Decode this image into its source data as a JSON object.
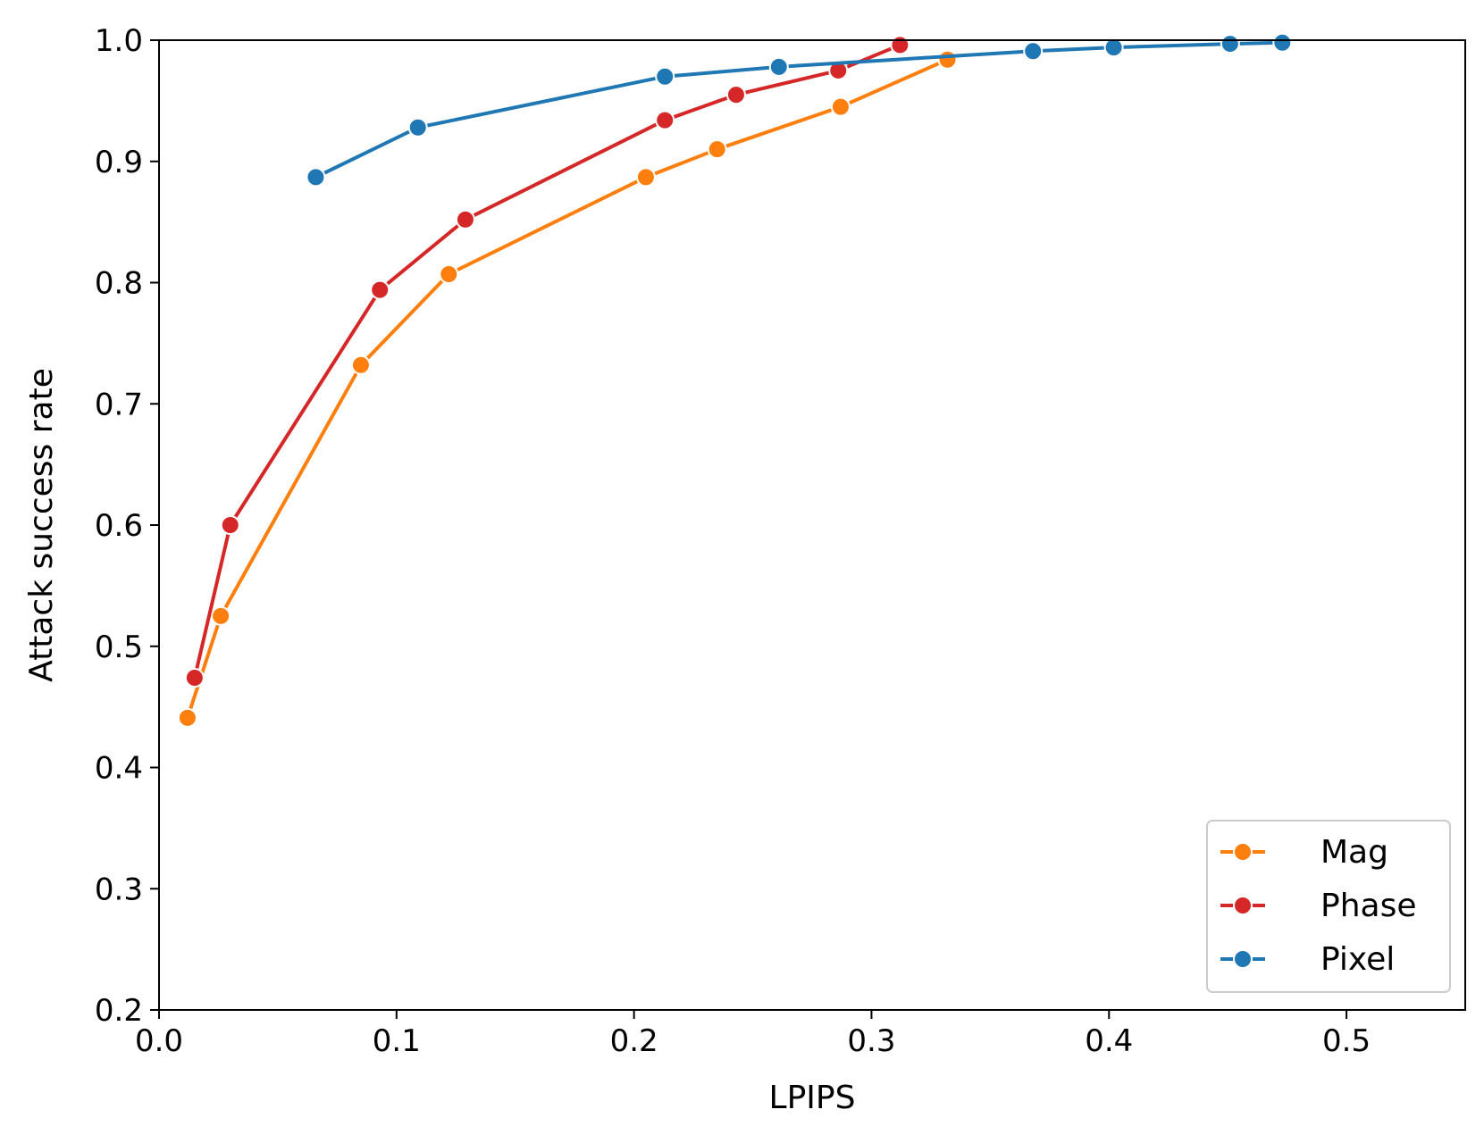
{
  "chart_data": {
    "type": "line",
    "title": "",
    "xlabel": "LPIPS",
    "ylabel": "Attack success rate",
    "xlim": [
      0.0,
      0.55
    ],
    "ylim": [
      0.2,
      1.0
    ],
    "xticks": [
      0.0,
      0.1,
      0.2,
      0.3,
      0.4,
      0.5
    ],
    "xtick_labels": [
      "0.0",
      "0.1",
      "0.2",
      "0.3",
      "0.4",
      "0.5"
    ],
    "yticks": [
      0.2,
      0.3,
      0.4,
      0.5,
      0.6,
      0.7,
      0.8,
      0.9,
      1.0
    ],
    "ytick_labels": [
      "0.2",
      "0.3",
      "0.4",
      "0.5",
      "0.6",
      "0.7",
      "0.8",
      "0.9",
      "1.0"
    ],
    "grid": false,
    "legend_position": "bottom-right",
    "series": [
      {
        "name": "Mag",
        "color": "#ff7f0e",
        "marker": "circle",
        "x": [
          0.012,
          0.026,
          0.085,
          0.122,
          0.205,
          0.235,
          0.287,
          0.332
        ],
        "y": [
          0.441,
          0.525,
          0.732,
          0.807,
          0.887,
          0.91,
          0.945,
          0.984
        ]
      },
      {
        "name": "Phase",
        "color": "#d62728",
        "marker": "circle",
        "x": [
          0.015,
          0.03,
          0.093,
          0.129,
          0.213,
          0.243,
          0.286,
          0.312
        ],
        "y": [
          0.474,
          0.6,
          0.794,
          0.852,
          0.934,
          0.955,
          0.975,
          0.996
        ]
      },
      {
        "name": "Pixel",
        "color": "#1f77b4",
        "marker": "circle",
        "x": [
          0.066,
          0.109,
          0.213,
          0.261,
          0.368,
          0.402,
          0.451,
          0.473
        ],
        "y": [
          0.887,
          0.928,
          0.97,
          0.978,
          0.991,
          0.994,
          0.997,
          0.998
        ]
      }
    ]
  }
}
